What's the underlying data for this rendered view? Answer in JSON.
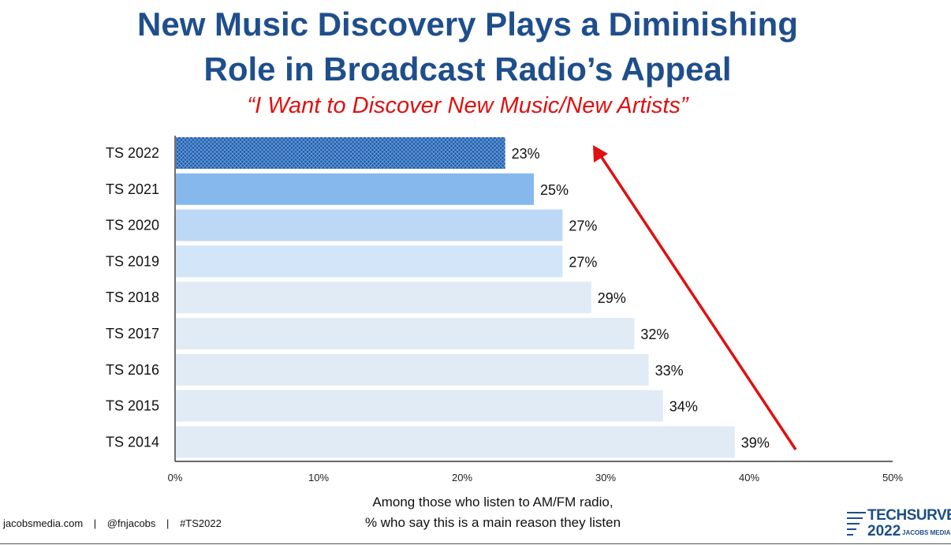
{
  "header": {
    "title_line1": "New Music Discovery Plays a Diminishing",
    "title_line2": "Role in Broadcast Radio’s Appeal",
    "subtitle": "“I Want to Discover New Music/New Artists”"
  },
  "chart_data": {
    "type": "bar",
    "orientation": "horizontal",
    "categories": [
      "TS 2022",
      "TS 2021",
      "TS 2020",
      "TS 2019",
      "TS 2018",
      "TS 2017",
      "TS 2016",
      "TS 2015",
      "TS 2014"
    ],
    "values": [
      23,
      25,
      27,
      27,
      29,
      32,
      33,
      34,
      39
    ],
    "value_labels": [
      "23%",
      "25%",
      "27%",
      "27%",
      "29%",
      "32%",
      "33%",
      "34%",
      "39%"
    ],
    "bar_colors": [
      "#1f5aa6",
      "#86b8ee",
      "#bdd8f5",
      "#d3e5f8",
      "#e1ebf6",
      "#e1ebf6",
      "#e1ebf6",
      "#e1ebf6",
      "#e1ebf6"
    ],
    "highlight_pattern": "crosshatch",
    "xlim": [
      0,
      50
    ],
    "x_ticks": [
      "0%",
      "10%",
      "20%",
      "30%",
      "40%",
      "50%"
    ],
    "xlabel_line1": "Among those who listen to AM/FM radio,",
    "xlabel_line2": "% who say this is a main reason they listen",
    "grid": false,
    "annotation": "red upward arrow"
  },
  "footer": {
    "site": "jacobsmedia.com",
    "handle": "@fnjacobs",
    "hashtag": "#TS2022",
    "separator": "|"
  },
  "logo": {
    "brand": "TECHSURVEY",
    "year": "2022",
    "sub": "JACOBS MEDIA"
  },
  "colors": {
    "title": "#1f4e8c",
    "subtitle": "#e01010",
    "arrow": "#e01010"
  }
}
